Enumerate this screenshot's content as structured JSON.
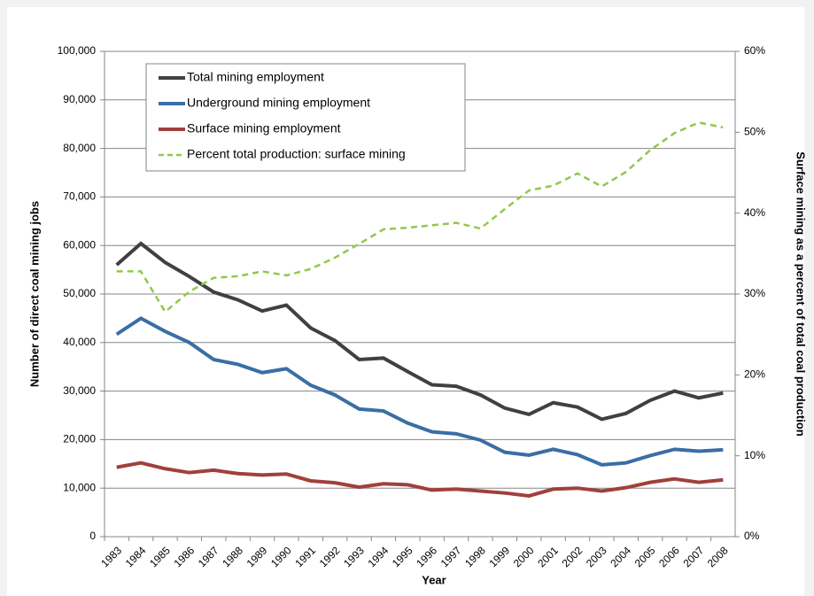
{
  "chart_data": {
    "type": "line",
    "x_label": "Year",
    "y_label": "Number of direct coal mining jobs",
    "y2_label": "Surface mining as a percent of total coal production",
    "categories": [
      "1983",
      "1984",
      "1985",
      "1986",
      "1987",
      "1988",
      "1989",
      "1990",
      "1991",
      "1992",
      "1993",
      "1994",
      "1995",
      "1996",
      "1997",
      "1998",
      "1999",
      "2000",
      "2001",
      "2002",
      "2003",
      "2004",
      "2005",
      "2006",
      "2007",
      "2008"
    ],
    "series": [
      {
        "name": "Total mining employment",
        "color": "#404040",
        "line_style": "solid",
        "values": [
          56000,
          60400,
          56500,
          53600,
          50400,
          48800,
          46500,
          47700,
          43000,
          40400,
          36500,
          36800,
          34000,
          31300,
          31000,
          29200,
          26500,
          25200,
          27600,
          26700,
          24200,
          25400,
          28100,
          30000,
          28600,
          29600
        ]
      },
      {
        "name": "Underground mining employment",
        "color": "#3a6ea5",
        "line_style": "solid",
        "values": [
          41700,
          45000,
          42300,
          40000,
          36500,
          35500,
          33800,
          34600,
          31200,
          29200,
          26300,
          25900,
          23400,
          21600,
          21200,
          19900,
          17400,
          16800,
          18000,
          16900,
          14800,
          15200,
          16700,
          18000,
          17600,
          17900
        ]
      },
      {
        "name": "Surface mining employment",
        "color": "#a0403c",
        "line_style": "solid",
        "values": [
          14300,
          15200,
          14000,
          13200,
          13700,
          13000,
          12700,
          12900,
          11500,
          11100,
          10200,
          10900,
          10700,
          9600,
          9800,
          9400,
          9000,
          8400,
          9800,
          10000,
          9400,
          10100,
          11200,
          11900,
          11200,
          11700
        ]
      },
      {
        "name": "Percent total production: surface mining",
        "color": "#92c84a",
        "line_style": "dashed",
        "axis": "y2",
        "values": [
          32.8,
          32.8,
          27.8,
          30.3,
          32.0,
          32.2,
          32.8,
          32.3,
          33.1,
          34.5,
          36.2,
          38.0,
          38.2,
          38.5,
          38.8,
          38.1,
          40.5,
          42.8,
          43.4,
          44.9,
          43.3,
          45.1,
          47.8,
          49.9,
          51.2,
          50.6
        ]
      }
    ],
    "ylim": [
      0,
      100000
    ],
    "yticks": [
      0,
      {
        "value": 10000,
        "label": "10,000"
      },
      {
        "value": 20000,
        "label": "20,000"
      },
      {
        "value": 30000,
        "label": "30,000"
      },
      {
        "value": 40000,
        "label": "40,000"
      },
      {
        "value": 50000,
        "label": "50,000"
      },
      {
        "value": 60000,
        "label": "60,000"
      },
      {
        "value": 70000,
        "label": "70,000"
      },
      {
        "value": 80000,
        "label": "80,000"
      },
      {
        "value": 90000,
        "label": "90,000"
      },
      {
        "value": 100000,
        "label": "100,000"
      }
    ],
    "y2lim": [
      0,
      60
    ],
    "y2ticks": [
      {
        "value": 0,
        "label": "0%"
      },
      {
        "value": 10,
        "label": "10%"
      },
      {
        "value": 20,
        "label": "20%"
      },
      {
        "value": 30,
        "label": "30%"
      },
      {
        "value": 40,
        "label": "40%"
      },
      {
        "value": 50,
        "label": "50%"
      },
      {
        "value": 60,
        "label": "60%"
      }
    ],
    "grid": true,
    "legend": "upper left"
  }
}
